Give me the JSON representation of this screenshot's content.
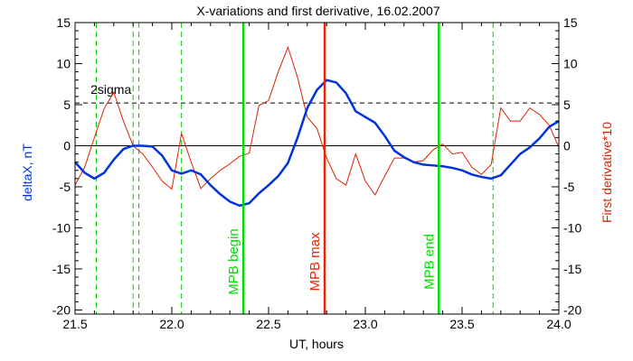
{
  "chart_data": {
    "type": "line",
    "title": "X-variations and first derivative, 16.02.2007",
    "xlabel": "UT, hours",
    "ylabel_left": "deltaX, nT",
    "ylabel_right": "First derivative*10",
    "xlim": [
      21.5,
      24.0
    ],
    "ylim": [
      -20.5,
      15
    ],
    "x_ticks": [
      "21.5",
      "22.0",
      "22.5",
      "23.0",
      "23.5",
      "24.0"
    ],
    "x_tick_values": [
      21.5,
      22.0,
      22.5,
      23.0,
      23.5,
      24.0
    ],
    "y_ticks": [
      "15",
      "10",
      "5",
      "0",
      "-5",
      "-10",
      "-15",
      "-20"
    ],
    "y_tick_values": [
      15,
      10,
      5,
      0,
      -5,
      -10,
      -15,
      -20
    ],
    "colors": {
      "deltaX": "#0033dd",
      "derivative": "#dd2200",
      "mpb_green": "#00dd00",
      "mpb_max": "#ee2200",
      "dashed_green": "#00cc00"
    },
    "sigma_level": 5.2,
    "sigma_label": "2sigma",
    "vertical_lines": [
      {
        "x": 22.37,
        "label": "MPB begin",
        "color": "#00dd00"
      },
      {
        "x": 22.79,
        "label": "MPB max",
        "color": "#ee2200"
      },
      {
        "x": 23.38,
        "label": "MPB end",
        "color": "#00dd00"
      }
    ],
    "dashed_lines": [
      21.61,
      21.8,
      21.83,
      22.05,
      23.66
    ],
    "series": [
      {
        "name": "deltaX",
        "x": [
          21.5,
          21.55,
          21.6,
          21.65,
          21.7,
          21.75,
          21.8,
          21.85,
          21.9,
          21.95,
          22.0,
          22.05,
          22.1,
          22.15,
          22.2,
          22.25,
          22.3,
          22.35,
          22.4,
          22.45,
          22.5,
          22.55,
          22.6,
          22.65,
          22.7,
          22.75,
          22.8,
          22.85,
          22.9,
          22.95,
          23.0,
          23.05,
          23.1,
          23.15,
          23.2,
          23.25,
          23.3,
          23.35,
          23.4,
          23.45,
          23.5,
          23.55,
          23.6,
          23.65,
          23.7,
          23.75,
          23.8,
          23.85,
          23.9,
          23.95,
          24.0
        ],
        "y": [
          -2.0,
          -3.3,
          -4.0,
          -3.3,
          -1.7,
          -0.4,
          0.0,
          0.0,
          -0.1,
          -1.2,
          -3.0,
          -3.4,
          -3.0,
          -3.5,
          -4.8,
          -5.9,
          -6.8,
          -7.3,
          -7.0,
          -5.8,
          -4.8,
          -3.7,
          -2.1,
          1.0,
          4.6,
          6.8,
          8.0,
          7.7,
          6.4,
          4.2,
          3.5,
          2.8,
          1.2,
          -0.6,
          -1.4,
          -2.0,
          -2.3,
          -2.4,
          -2.5,
          -2.7,
          -3.0,
          -3.5,
          -3.8,
          -4.0,
          -3.6,
          -2.3,
          -1.0,
          -0.2,
          0.9,
          2.3,
          3.0
        ]
      },
      {
        "name": "First derivative*10",
        "x": [
          21.5,
          21.55,
          21.6,
          21.65,
          21.7,
          21.75,
          21.8,
          21.85,
          21.9,
          21.95,
          22.0,
          22.05,
          22.1,
          22.15,
          22.2,
          22.25,
          22.3,
          22.35,
          22.4,
          22.45,
          22.5,
          22.55,
          22.6,
          22.65,
          22.7,
          22.75,
          22.8,
          22.85,
          22.9,
          22.95,
          23.0,
          23.05,
          23.1,
          23.15,
          23.2,
          23.25,
          23.3,
          23.35,
          23.4,
          23.45,
          23.5,
          23.55,
          23.6,
          23.65,
          23.7,
          23.75,
          23.8,
          23.85,
          23.9,
          23.95,
          24.0
        ],
        "y": [
          -4.8,
          -2.6,
          1.0,
          4.5,
          6.5,
          3.0,
          0.0,
          -1.0,
          -2.6,
          -4.3,
          -5.3,
          1.5,
          -2.0,
          -5.2,
          -4.0,
          -3.0,
          -2.2,
          -1.3,
          -0.9,
          4.9,
          5.5,
          9.0,
          12.0,
          8.3,
          3.5,
          2.1,
          -1.5,
          -4.0,
          -4.8,
          -1.0,
          -4.3,
          -6.0,
          -3.7,
          -1.5,
          -1.5,
          -2.0,
          -1.8,
          -0.5,
          0.2,
          -1.0,
          -0.8,
          -2.6,
          -3.5,
          -2.3,
          4.6,
          3.0,
          3.0,
          4.6,
          3.8,
          2.5,
          -0.2
        ]
      }
    ]
  }
}
